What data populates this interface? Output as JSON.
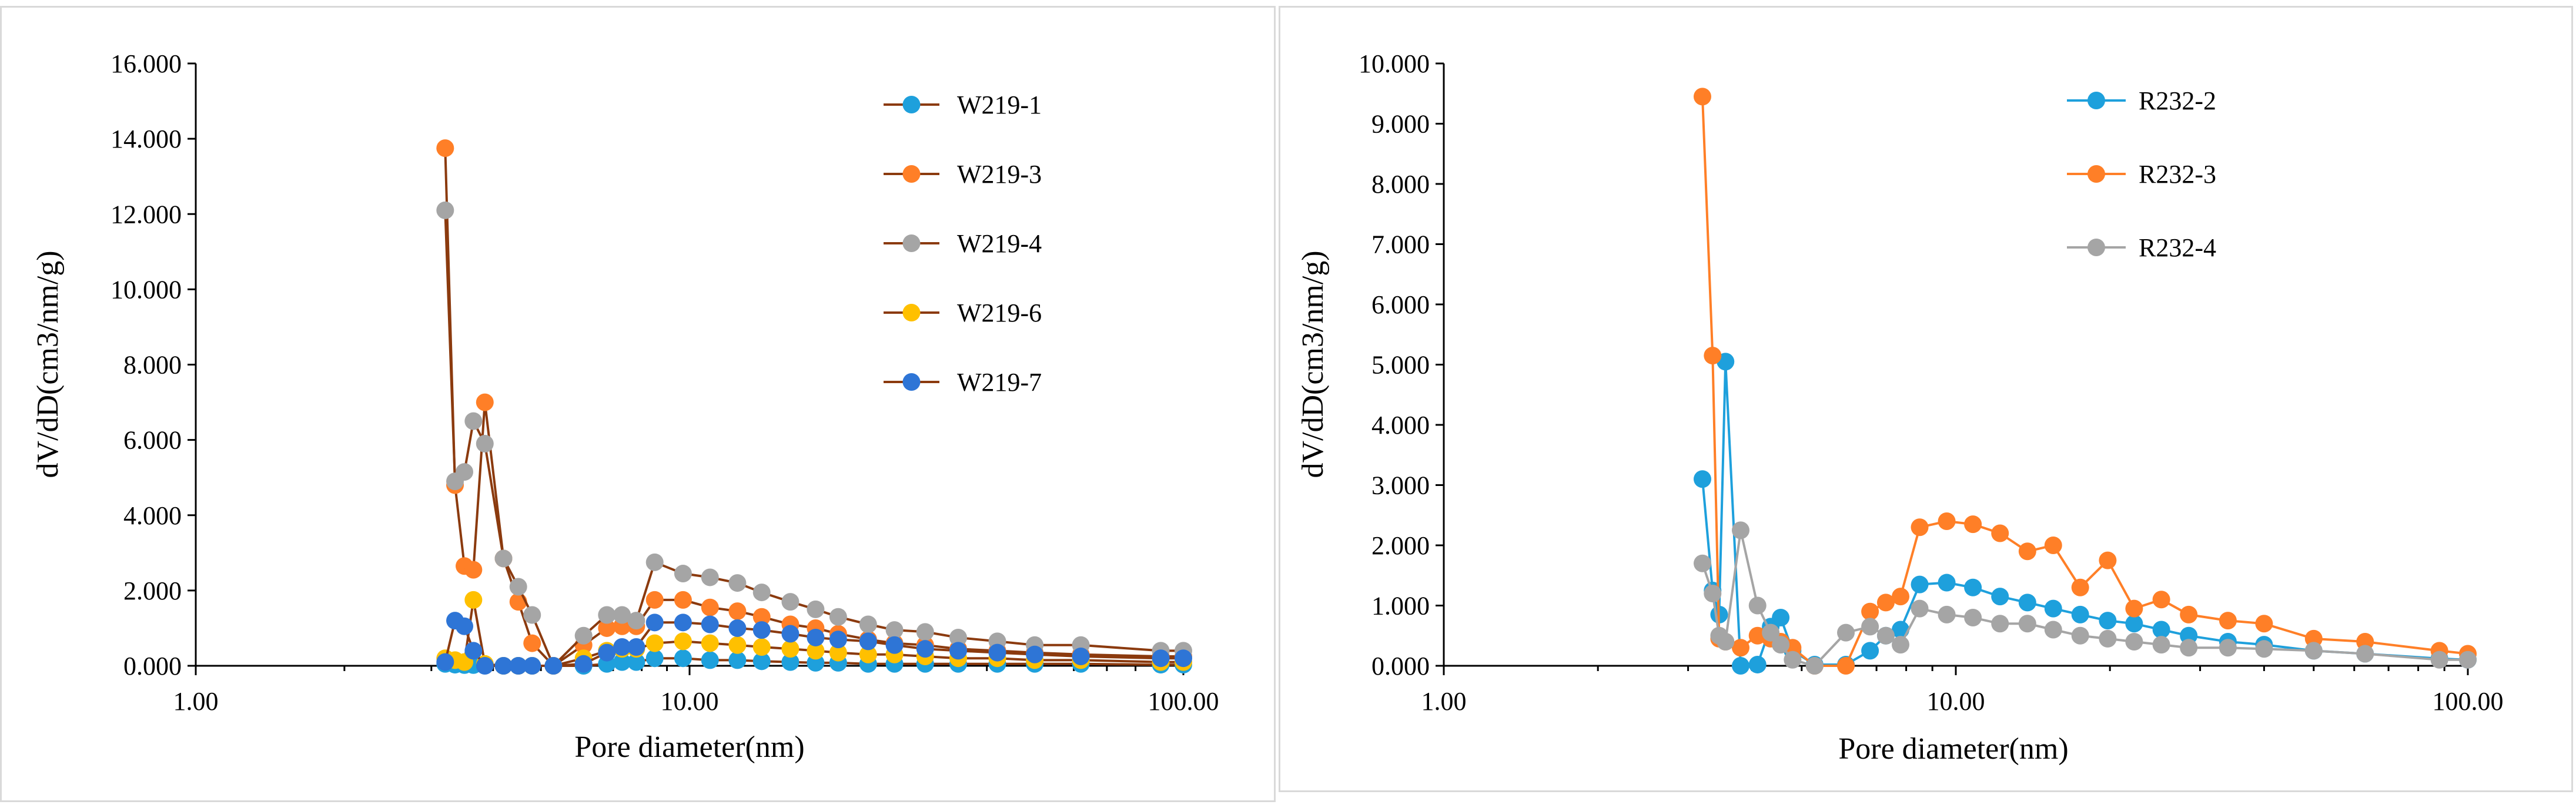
{
  "chart_data": [
    {
      "type": "scatter",
      "title": "",
      "xlabel": "Pore diameter(nm)",
      "ylabel": "dV/dD(cm3/nm/g)",
      "x_scale": "log",
      "xlim": [
        1,
        100
      ],
      "ylim": [
        0,
        16
      ],
      "x_ticks": [
        1,
        10,
        100
      ],
      "x_tick_labels": [
        "1.00",
        "10.00",
        "100.00"
      ],
      "y_ticks": [
        0,
        2,
        4,
        6,
        8,
        10,
        12,
        14,
        16
      ],
      "y_tick_labels": [
        "0.000",
        "2.000",
        "4.000",
        "6.000",
        "8.000",
        "10.000",
        "12.000",
        "14.000",
        "16.000"
      ],
      "grid": false,
      "legend_position": "top-right",
      "series": [
        {
          "name": "W219-1",
          "color": "#1ea0dc",
          "x": [
            3.2,
            3.35,
            3.5,
            3.65,
            3.85,
            4.2,
            4.5,
            4.8,
            5.3,
            6.1,
            6.8,
            7.3,
            7.8,
            8.5,
            9.7,
            11.0,
            12.5,
            14.0,
            16.0,
            18.0,
            20.0,
            23.0,
            26.0,
            30.0,
            35.0,
            42.0,
            50.0,
            62.0,
            90.0,
            100.0
          ],
          "y": [
            0.05,
            0.03,
            0.02,
            0.02,
            0.01,
            0.0,
            0.0,
            0.0,
            0.0,
            0.0,
            0.05,
            0.1,
            0.1,
            0.2,
            0.2,
            0.15,
            0.15,
            0.12,
            0.1,
            0.08,
            0.08,
            0.05,
            0.05,
            0.05,
            0.05,
            0.05,
            0.05,
            0.05,
            0.03,
            0.03
          ]
        },
        {
          "name": "W219-3",
          "color": "#ff7f27",
          "x": [
            3.2,
            3.35,
            3.5,
            3.65,
            3.85,
            4.2,
            4.5,
            4.8,
            5.3,
            6.1,
            6.8,
            7.3,
            7.8,
            8.5,
            9.7,
            11.0,
            12.5,
            14.0,
            16.0,
            18.0,
            20.0,
            23.0,
            26.0,
            30.0,
            35.0,
            42.0,
            50.0,
            62.0,
            90.0,
            100.0
          ],
          "y": [
            13.75,
            4.8,
            2.65,
            2.55,
            7.0,
            2.85,
            1.7,
            0.6,
            0.0,
            0.55,
            1.0,
            1.05,
            1.05,
            1.75,
            1.75,
            1.55,
            1.45,
            1.3,
            1.1,
            1.0,
            0.85,
            0.7,
            0.6,
            0.55,
            0.45,
            0.4,
            0.35,
            0.3,
            0.25,
            0.25
          ]
        },
        {
          "name": "W219-4",
          "color": "#a5a5a5",
          "x": [
            3.2,
            3.35,
            3.5,
            3.65,
            3.85,
            4.2,
            4.5,
            4.8,
            5.3,
            6.1,
            6.8,
            7.3,
            7.8,
            8.5,
            9.7,
            11.0,
            12.5,
            14.0,
            16.0,
            18.0,
            20.0,
            23.0,
            26.0,
            30.0,
            35.0,
            42.0,
            50.0,
            62.0,
            90.0,
            100.0
          ],
          "y": [
            12.1,
            4.9,
            5.15,
            6.5,
            5.9,
            2.85,
            2.1,
            1.35,
            0.0,
            0.8,
            1.35,
            1.35,
            1.2,
            2.75,
            2.45,
            2.35,
            2.2,
            1.95,
            1.7,
            1.5,
            1.3,
            1.1,
            0.95,
            0.9,
            0.75,
            0.65,
            0.55,
            0.55,
            0.4,
            0.4
          ]
        },
        {
          "name": "W219-6",
          "color": "#ffc000",
          "x": [
            3.2,
            3.35,
            3.5,
            3.65,
            3.85,
            4.2,
            4.5,
            4.8,
            5.3,
            6.1,
            6.8,
            7.3,
            7.8,
            8.5,
            9.7,
            11.0,
            12.5,
            14.0,
            16.0,
            18.0,
            20.0,
            23.0,
            26.0,
            30.0,
            35.0,
            42.0,
            50.0,
            62.0,
            90.0,
            100.0
          ],
          "y": [
            0.2,
            0.15,
            0.1,
            1.75,
            0.05,
            0.0,
            0.0,
            0.0,
            0.0,
            0.2,
            0.4,
            0.45,
            0.45,
            0.6,
            0.65,
            0.6,
            0.55,
            0.5,
            0.45,
            0.4,
            0.35,
            0.3,
            0.3,
            0.25,
            0.2,
            0.2,
            0.15,
            0.15,
            0.1,
            0.1
          ]
        },
        {
          "name": "W219-7",
          "color": "#2e75d6",
          "x": [
            3.2,
            3.35,
            3.5,
            3.65,
            3.85,
            4.2,
            4.5,
            4.8,
            5.3,
            6.1,
            6.8,
            7.3,
            7.8,
            8.5,
            9.7,
            11.0,
            12.5,
            14.0,
            16.0,
            18.0,
            20.0,
            23.0,
            26.0,
            30.0,
            35.0,
            42.0,
            50.0,
            62.0,
            90.0,
            100.0
          ],
          "y": [
            0.1,
            1.2,
            1.05,
            0.4,
            0.0,
            0.0,
            0.0,
            0.0,
            0.0,
            0.05,
            0.35,
            0.5,
            0.5,
            1.15,
            1.15,
            1.1,
            1.0,
            0.95,
            0.85,
            0.75,
            0.7,
            0.65,
            0.55,
            0.45,
            0.4,
            0.35,
            0.3,
            0.25,
            0.2,
            0.2
          ]
        }
      ]
    },
    {
      "type": "scatter",
      "title": "",
      "xlabel": "Pore diameter(nm)",
      "ylabel": "dV/dD(cm3/nm/g)",
      "x_scale": "log",
      "xlim": [
        1,
        100
      ],
      "ylim": [
        0,
        10
      ],
      "x_ticks": [
        1,
        10,
        100
      ],
      "x_tick_labels": [
        "1.00",
        "10.00",
        "100.00"
      ],
      "y_ticks": [
        0,
        1,
        2,
        3,
        4,
        5,
        6,
        7,
        8,
        9,
        10
      ],
      "y_tick_labels": [
        "0.000",
        "1.000",
        "2.000",
        "3.000",
        "4.000",
        "5.000",
        "6.000",
        "7.000",
        "8.000",
        "9.000",
        "10.000"
      ],
      "grid": false,
      "legend_position": "top-right",
      "series": [
        {
          "name": "R232-2",
          "color": "#1ea0dc",
          "x": [
            3.2,
            3.35,
            3.45,
            3.55,
            3.8,
            4.1,
            4.35,
            4.55,
            4.8,
            5.3,
            6.1,
            6.8,
            7.3,
            7.8,
            8.5,
            9.6,
            10.8,
            12.2,
            13.8,
            15.5,
            17.5,
            19.8,
            22.3,
            25.2,
            28.5,
            34.0,
            40.0,
            50.0,
            63.0,
            88.0,
            100.0
          ],
          "y": [
            3.1,
            1.25,
            0.85,
            5.05,
            0.0,
            0.02,
            0.65,
            0.8,
            0.25,
            0.02,
            0.02,
            0.25,
            0.5,
            0.6,
            1.35,
            1.38,
            1.3,
            1.15,
            1.05,
            0.95,
            0.85,
            0.75,
            0.7,
            0.6,
            0.5,
            0.4,
            0.35,
            0.25,
            0.2,
            0.12,
            0.1
          ]
        },
        {
          "name": "R232-3",
          "color": "#ff7f27",
          "x": [
            3.2,
            3.35,
            3.45,
            3.55,
            3.8,
            4.1,
            4.35,
            4.55,
            4.8,
            5.3,
            6.1,
            6.8,
            7.3,
            7.8,
            8.5,
            9.6,
            10.8,
            12.2,
            13.8,
            15.5,
            17.5,
            19.8,
            22.3,
            25.2,
            28.5,
            34.0,
            40.0,
            50.0,
            63.0,
            88.0,
            100.0
          ],
          "y": [
            9.45,
            5.15,
            0.45,
            0.4,
            0.3,
            0.5,
            0.45,
            0.4,
            0.3,
            0.0,
            0.0,
            0.9,
            1.05,
            1.15,
            2.3,
            2.4,
            2.35,
            2.2,
            1.9,
            2.0,
            1.3,
            1.75,
            0.95,
            1.1,
            0.85,
            0.75,
            0.7,
            0.45,
            0.4,
            0.25,
            0.2
          ]
        },
        {
          "name": "R232-4",
          "color": "#a5a5a5",
          "x": [
            3.2,
            3.35,
            3.45,
            3.55,
            3.8,
            4.1,
            4.35,
            4.55,
            4.8,
            5.3,
            6.1,
            6.8,
            7.3,
            7.8,
            8.5,
            9.6,
            10.8,
            12.2,
            13.8,
            15.5,
            17.5,
            19.8,
            22.3,
            25.2,
            28.5,
            34.0,
            40.0,
            50.0,
            63.0,
            88.0,
            100.0
          ],
          "y": [
            1.7,
            1.2,
            0.5,
            0.4,
            2.25,
            1.0,
            0.55,
            0.35,
            0.1,
            0.0,
            0.55,
            0.65,
            0.5,
            0.35,
            0.95,
            0.85,
            0.8,
            0.7,
            0.7,
            0.6,
            0.5,
            0.45,
            0.4,
            0.35,
            0.3,
            0.3,
            0.28,
            0.25,
            0.2,
            0.1,
            0.1
          ]
        }
      ]
    }
  ]
}
